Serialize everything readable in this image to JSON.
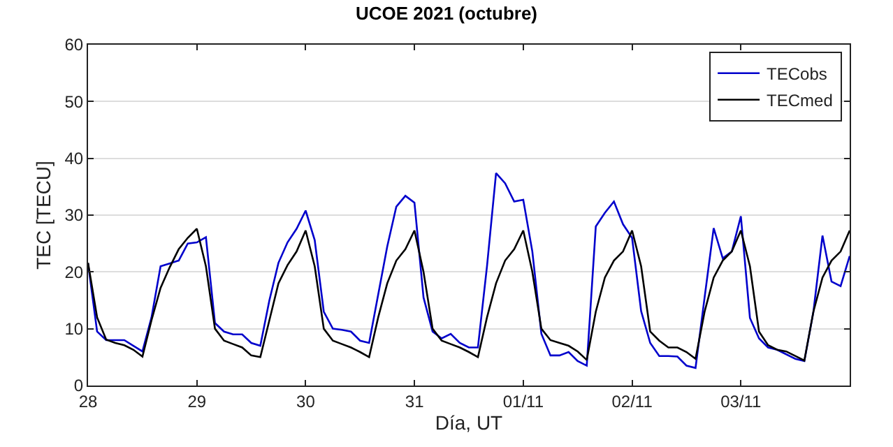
{
  "chart_data": {
    "type": "line",
    "title": "UCOE 2021 (octubre)",
    "xlabel": "Día, UT",
    "ylabel": "TEC [TECU]",
    "x": [
      "2021-10-28T00:00",
      "2021-10-28T02:00",
      "2021-10-28T04:00",
      "2021-10-28T06:00",
      "2021-10-28T08:00",
      "2021-10-28T10:00",
      "2021-10-28T12:00",
      "2021-10-28T14:00",
      "2021-10-28T16:00",
      "2021-10-28T18:00",
      "2021-10-28T20:00",
      "2021-10-28T22:00",
      "2021-10-29T00:00",
      "2021-10-29T02:00",
      "2021-10-29T04:00",
      "2021-10-29T06:00",
      "2021-10-29T08:00",
      "2021-10-29T10:00",
      "2021-10-29T12:00",
      "2021-10-29T14:00",
      "2021-10-29T16:00",
      "2021-10-29T18:00",
      "2021-10-29T20:00",
      "2021-10-29T22:00",
      "2021-10-30T00:00",
      "2021-10-30T02:00",
      "2021-10-30T04:00",
      "2021-10-30T06:00",
      "2021-10-30T08:00",
      "2021-10-30T10:00",
      "2021-10-30T12:00",
      "2021-10-30T14:00",
      "2021-10-30T16:00",
      "2021-10-30T18:00",
      "2021-10-30T20:00",
      "2021-10-30T22:00",
      "2021-10-31T00:00",
      "2021-10-31T02:00",
      "2021-10-31T04:00",
      "2021-10-31T06:00",
      "2021-10-31T08:00",
      "2021-10-31T10:00",
      "2021-10-31T12:00",
      "2021-10-31T14:00",
      "2021-10-31T16:00",
      "2021-10-31T18:00",
      "2021-10-31T20:00",
      "2021-10-31T22:00",
      "2021-11-01T00:00",
      "2021-11-01T02:00",
      "2021-11-01T04:00",
      "2021-11-01T06:00",
      "2021-11-01T08:00",
      "2021-11-01T10:00",
      "2021-11-01T12:00",
      "2021-11-01T14:00",
      "2021-11-01T16:00",
      "2021-11-01T18:00",
      "2021-11-01T20:00",
      "2021-11-01T22:00",
      "2021-11-02T00:00",
      "2021-11-02T02:00",
      "2021-11-02T04:00",
      "2021-11-02T06:00",
      "2021-11-02T08:00",
      "2021-11-02T10:00",
      "2021-11-02T12:00",
      "2021-11-02T14:00",
      "2021-11-02T16:00",
      "2021-11-02T18:00",
      "2021-11-02T20:00",
      "2021-11-02T22:00",
      "2021-11-03T00:00",
      "2021-11-03T02:00",
      "2021-11-03T04:00",
      "2021-11-03T06:00",
      "2021-11-03T08:00",
      "2021-11-03T10:00",
      "2021-11-03T12:00",
      "2021-11-03T14:00",
      "2021-11-03T16:00",
      "2021-11-03T18:00",
      "2021-11-03T20:00",
      "2021-11-03T22:00",
      "2021-11-04T00:00"
    ],
    "series": [
      {
        "name": "TECobs",
        "color": "#0000cc",
        "values": [
          21.5,
          9.5,
          8,
          8,
          8,
          7,
          6,
          12,
          21,
          21.5,
          22,
          25,
          25.2,
          26.1,
          11,
          9.5,
          9,
          9,
          7.5,
          7,
          15,
          21.6,
          25.2,
          27.6,
          30.8,
          25.6,
          13,
          10,
          9.8,
          9.5,
          7.9,
          7.5,
          16,
          24.5,
          31.5,
          33.4,
          32.2,
          15.5,
          9.5,
          8.3,
          9.1,
          7.5,
          6.7,
          6.7,
          21,
          37.4,
          35.6,
          32.4,
          32.7,
          23.6,
          9.1,
          5.3,
          5.3,
          5.9,
          4.3,
          3.5,
          28,
          30.4,
          32.4,
          28.4,
          26,
          13.1,
          7.5,
          5.2,
          5.2,
          5.1,
          3.5,
          3.1,
          15.5,
          27.7,
          22.4,
          23.6,
          29.8,
          11.9,
          8.3,
          6.7,
          6.3,
          5.5,
          4.7,
          4.3,
          13,
          26.4,
          18.3,
          17.5,
          22.8
        ]
      },
      {
        "name": "TECmed",
        "color": "#000000",
        "values": [
          21.6,
          12,
          8.1,
          7.5,
          7.1,
          6.3,
          5.1,
          11.5,
          17.2,
          20.8,
          24,
          26,
          27.6,
          21,
          10,
          7.9,
          7.3,
          6.7,
          5.3,
          5,
          11.5,
          18,
          21.2,
          23.6,
          27.3,
          21,
          10,
          7.9,
          7.3,
          6.7,
          5.9,
          5,
          12,
          18,
          22,
          24,
          27.3,
          20,
          10,
          7.9,
          7.3,
          6.7,
          5.9,
          5,
          12,
          18,
          22,
          24,
          27.3,
          20,
          10,
          8,
          7.5,
          7,
          6,
          4.5,
          13,
          19,
          22,
          23.6,
          27.3,
          21,
          9.5,
          7.9,
          6.7,
          6.7,
          5.9,
          4.7,
          13,
          19,
          22,
          23.6,
          27.3,
          21,
          9.5,
          7.1,
          6.3,
          6,
          5.2,
          4.4,
          13,
          19,
          22,
          23.6,
          27.3
        ]
      }
    ],
    "xlim": [
      "2021-10-28T00:00",
      "2021-11-04T00:00"
    ],
    "xticks": [
      {
        "value": "2021-10-28",
        "label": "28"
      },
      {
        "value": "2021-10-29",
        "label": "29"
      },
      {
        "value": "2021-10-30",
        "label": "30"
      },
      {
        "value": "2021-10-31",
        "label": "31"
      },
      {
        "value": "2021-11-01",
        "label": "01/11"
      },
      {
        "value": "2021-11-02",
        "label": "02/11"
      },
      {
        "value": "2021-11-03",
        "label": "03/11"
      }
    ],
    "ylim": [
      0,
      60
    ],
    "yticks": [
      0,
      10,
      20,
      30,
      40,
      50,
      60
    ],
    "grid": "y",
    "legend": "top right",
    "marker": "none",
    "line_style": "solid"
  }
}
